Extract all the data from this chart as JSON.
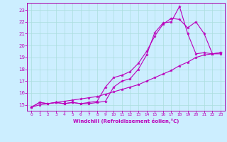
{
  "xlabel": "Windchill (Refroidissement éolien,°C)",
  "bg_color": "#cceeff",
  "grid_color": "#aadddd",
  "line_color": "#bb00bb",
  "spine_color": "#aa00aa",
  "xlim": [
    -0.5,
    23.5
  ],
  "ylim": [
    14.5,
    23.6
  ],
  "yticks": [
    15,
    16,
    17,
    18,
    19,
    20,
    21,
    22,
    23
  ],
  "xticks": [
    0,
    1,
    2,
    3,
    4,
    5,
    6,
    7,
    8,
    9,
    10,
    11,
    12,
    13,
    14,
    15,
    16,
    17,
    18,
    19,
    20,
    21,
    22,
    23
  ],
  "line1_x": [
    0,
    1,
    2,
    3,
    4,
    5,
    6,
    7,
    8,
    9,
    10,
    11,
    12,
    13,
    14,
    15,
    16,
    17,
    18,
    19,
    20,
    21,
    22,
    23
  ],
  "line1_y": [
    14.8,
    15.2,
    15.1,
    15.2,
    15.1,
    15.2,
    15.1,
    15.1,
    15.2,
    15.3,
    16.5,
    17.0,
    17.2,
    18.0,
    19.2,
    21.1,
    21.9,
    22.0,
    23.3,
    21.0,
    19.3,
    19.4,
    19.3,
    19.4
  ],
  "line2_x": [
    0,
    1,
    2,
    3,
    4,
    5,
    6,
    7,
    8,
    9,
    10,
    11,
    12,
    13,
    14,
    15,
    16,
    17,
    18,
    19,
    20,
    21,
    22,
    23
  ],
  "line2_y": [
    14.8,
    15.2,
    15.1,
    15.2,
    15.1,
    15.2,
    15.1,
    15.2,
    15.3,
    16.5,
    17.3,
    17.5,
    17.8,
    18.5,
    19.5,
    20.8,
    21.8,
    22.3,
    22.2,
    21.5,
    22.0,
    21.0,
    19.3,
    19.3
  ],
  "line3_x": [
    0,
    1,
    2,
    3,
    4,
    5,
    6,
    7,
    8,
    9,
    10,
    11,
    12,
    13,
    14,
    15,
    16,
    17,
    18,
    19,
    20,
    21,
    22,
    23
  ],
  "line3_y": [
    14.8,
    15.0,
    15.1,
    15.2,
    15.3,
    15.4,
    15.5,
    15.6,
    15.7,
    15.9,
    16.1,
    16.3,
    16.5,
    16.7,
    17.0,
    17.3,
    17.6,
    17.9,
    18.3,
    18.6,
    19.0,
    19.2,
    19.3,
    19.4
  ]
}
